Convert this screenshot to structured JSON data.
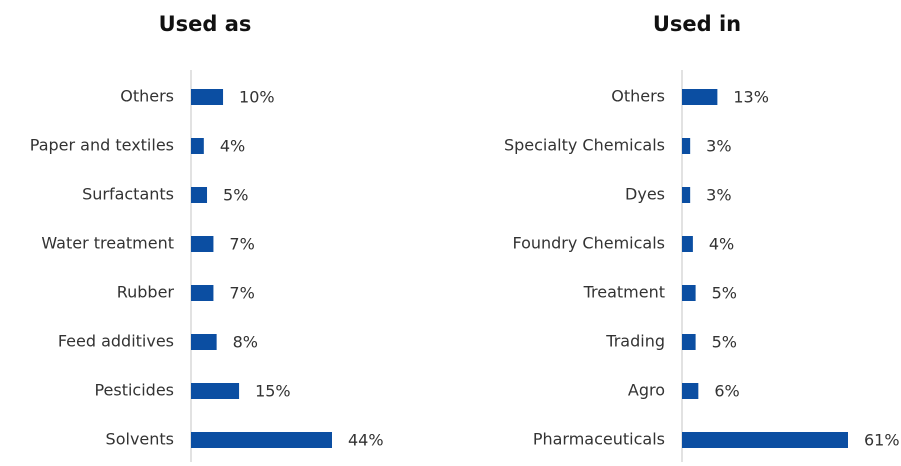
{
  "chart_data": [
    {
      "type": "bar",
      "orientation": "horizontal",
      "title": "Used as",
      "categories": [
        "Others",
        "Paper and textiles",
        "Surfactants",
        "Water treatment",
        "Rubber",
        "Feed additives",
        "Pesticides",
        "Solvents"
      ],
      "values": [
        10,
        4,
        5,
        7,
        7,
        8,
        15,
        44
      ],
      "value_labels": [
        "10%",
        "4%",
        "5%",
        "7%",
        "7%",
        "8%",
        "15%",
        "44%"
      ],
      "color": "#0b4ea2"
    },
    {
      "type": "bar",
      "orientation": "horizontal",
      "title": "Used in",
      "categories": [
        "Others",
        "Specialty Chemicals",
        "Dyes",
        "Foundry Chemicals",
        "Treatment",
        "Trading",
        "Agro",
        "Pharmaceuticals"
      ],
      "values": [
        13,
        3,
        3,
        4,
        5,
        5,
        6,
        61
      ],
      "value_labels": [
        "13%",
        "3%",
        "3%",
        "4%",
        "5%",
        "5%",
        "6%",
        "61%"
      ],
      "color": "#0b4ea2"
    }
  ]
}
